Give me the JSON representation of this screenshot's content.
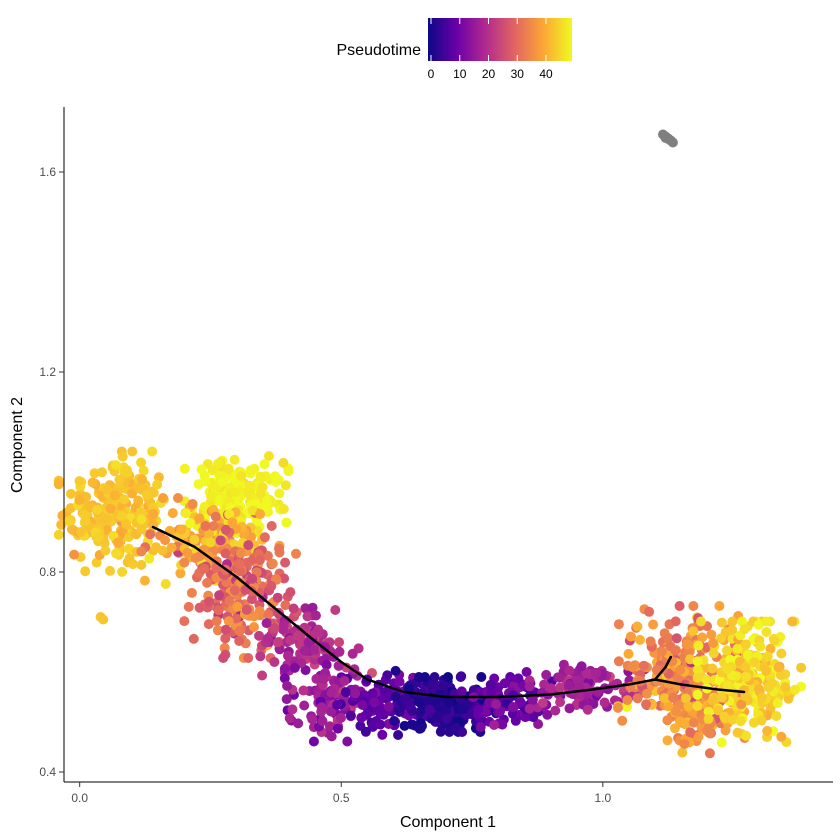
{
  "chart_data": {
    "type": "scatter",
    "xlabel": "Component 1",
    "ylabel": "Component 2",
    "xlim": [
      -0.03,
      1.44
    ],
    "ylim": [
      0.38,
      1.73
    ],
    "x_ticks": [
      0.0,
      0.5,
      1.0
    ],
    "x_tick_labels": [
      "0.0",
      "0.5",
      "1.0"
    ],
    "y_ticks": [
      0.4,
      0.8,
      1.2,
      1.6
    ],
    "y_tick_labels": [
      "0.4",
      "0.8",
      "1.2",
      "1.6"
    ],
    "grid": false,
    "color_legend": {
      "title": "Pseudotime",
      "position": "top",
      "range": [
        0,
        48
      ],
      "ticks": [
        0,
        10,
        20,
        30,
        40
      ],
      "tick_labels": [
        "0",
        "10",
        "20",
        "30",
        "40"
      ],
      "palette": [
        "#0d0887",
        "#6a00a8",
        "#b12a90",
        "#e16462",
        "#fca636",
        "#f0f921"
      ]
    },
    "na_color": "#7f7f7f",
    "trajectory": [
      [
        0.14,
        0.89
      ],
      [
        0.22,
        0.85
      ],
      [
        0.3,
        0.79
      ],
      [
        0.37,
        0.73
      ],
      [
        0.44,
        0.67
      ],
      [
        0.5,
        0.62
      ],
      [
        0.55,
        0.585
      ],
      [
        0.62,
        0.56
      ],
      [
        0.7,
        0.55
      ],
      [
        0.8,
        0.55
      ],
      [
        0.9,
        0.555
      ],
      [
        0.98,
        0.565
      ],
      [
        1.05,
        0.575
      ],
      [
        1.1,
        0.585
      ],
      [
        1.15,
        0.575
      ],
      [
        1.22,
        0.565
      ],
      [
        1.27,
        0.56
      ]
    ],
    "trajectory_branch": [
      [
        1.1,
        0.585
      ],
      [
        1.12,
        0.61
      ],
      [
        1.13,
        0.63
      ]
    ],
    "clusters": [
      {
        "cx": 0.07,
        "cy": 0.92,
        "sx": 0.05,
        "sy": 0.055,
        "n": 230,
        "t_mean": 42,
        "t_sd": 1.5
      },
      {
        "cx": 0.3,
        "cy": 0.955,
        "sx": 0.045,
        "sy": 0.035,
        "n": 160,
        "t_mean": 47,
        "t_sd": 1.2
      },
      {
        "cx": 0.25,
        "cy": 0.86,
        "sx": 0.06,
        "sy": 0.04,
        "n": 150,
        "t_mean": 38,
        "t_sd": 4
      },
      {
        "cx": 0.31,
        "cy": 0.76,
        "sx": 0.05,
        "sy": 0.06,
        "n": 190,
        "t_mean": 30,
        "t_sd": 4
      },
      {
        "cx": 0.42,
        "cy": 0.67,
        "sx": 0.035,
        "sy": 0.035,
        "n": 90,
        "t_mean": 21,
        "t_sd": 3
      },
      {
        "cx": 0.48,
        "cy": 0.56,
        "sx": 0.04,
        "sy": 0.045,
        "n": 130,
        "t_mean": 16,
        "t_sd": 3
      },
      {
        "cx": 0.58,
        "cy": 0.54,
        "sx": 0.04,
        "sy": 0.03,
        "n": 90,
        "t_mean": 9,
        "t_sd": 2.5
      },
      {
        "cx": 0.7,
        "cy": 0.535,
        "sx": 0.045,
        "sy": 0.025,
        "n": 190,
        "t_mean": 3,
        "t_sd": 2
      },
      {
        "cx": 0.82,
        "cy": 0.545,
        "sx": 0.045,
        "sy": 0.025,
        "n": 90,
        "t_mean": 10,
        "t_sd": 2.5
      },
      {
        "cx": 0.97,
        "cy": 0.57,
        "sx": 0.05,
        "sy": 0.025,
        "n": 110,
        "t_mean": 17,
        "t_sd": 2.5
      },
      {
        "cx": 1.15,
        "cy": 0.6,
        "sx": 0.055,
        "sy": 0.06,
        "n": 230,
        "t_mean": 33,
        "t_sd": 4
      },
      {
        "cx": 1.18,
        "cy": 0.52,
        "sx": 0.04,
        "sy": 0.04,
        "n": 80,
        "t_mean": 36,
        "t_sd": 3
      },
      {
        "cx": 1.28,
        "cy": 0.58,
        "sx": 0.045,
        "sy": 0.055,
        "n": 230,
        "t_mean": 44,
        "t_sd": 3
      }
    ],
    "outlier_points": [
      {
        "x": 0.04,
        "y": 0.71,
        "t": 42
      },
      {
        "x": 0.045,
        "y": 0.705,
        "t": 42
      }
    ],
    "na_points": [
      {
        "x": 1.115,
        "y": 1.675
      },
      {
        "x": 1.12,
        "y": 1.671
      },
      {
        "x": 1.125,
        "y": 1.667
      },
      {
        "x": 1.13,
        "y": 1.663
      },
      {
        "x": 1.134,
        "y": 1.659
      },
      {
        "x": 1.12,
        "y": 1.668
      },
      {
        "x": 1.128,
        "y": 1.664
      }
    ]
  }
}
